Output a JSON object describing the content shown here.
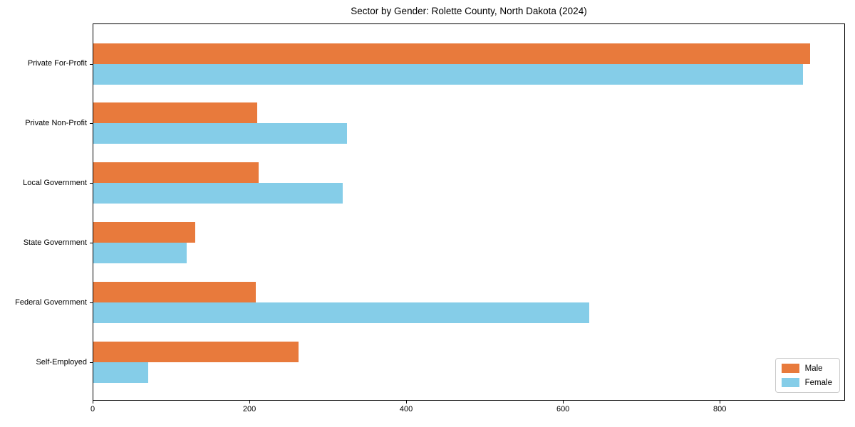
{
  "title": "Sector by Gender: Rolette County, North Dakota (2024)",
  "chart_data": {
    "type": "bar",
    "orientation": "horizontal",
    "title": "Sector by Gender: Rolette County, North Dakota (2024)",
    "categories": [
      "Private For-Profit",
      "Private Non-Profit",
      "Local Government",
      "State Government",
      "Federal Government",
      "Self-Employed"
    ],
    "series": [
      {
        "name": "Male",
        "color": "#e87a3c",
        "values": [
          914,
          209,
          211,
          130,
          207,
          262
        ]
      },
      {
        "name": "Female",
        "color": "#85cde8",
        "values": [
          905,
          324,
          318,
          119,
          633,
          70
        ]
      }
    ],
    "xlabel": "",
    "ylabel": "",
    "xlim": [
      0,
      958
    ],
    "xticks": [
      0,
      200,
      400,
      600,
      800
    ],
    "grid": false,
    "legend_position": "lower right"
  },
  "legend": {
    "items": [
      {
        "label": "Male",
        "color": "#e87a3c"
      },
      {
        "label": "Female",
        "color": "#85cde8"
      }
    ]
  },
  "axes": {
    "spine_color": "#000000",
    "tick_color": "#000000",
    "text_color": "#000000"
  }
}
